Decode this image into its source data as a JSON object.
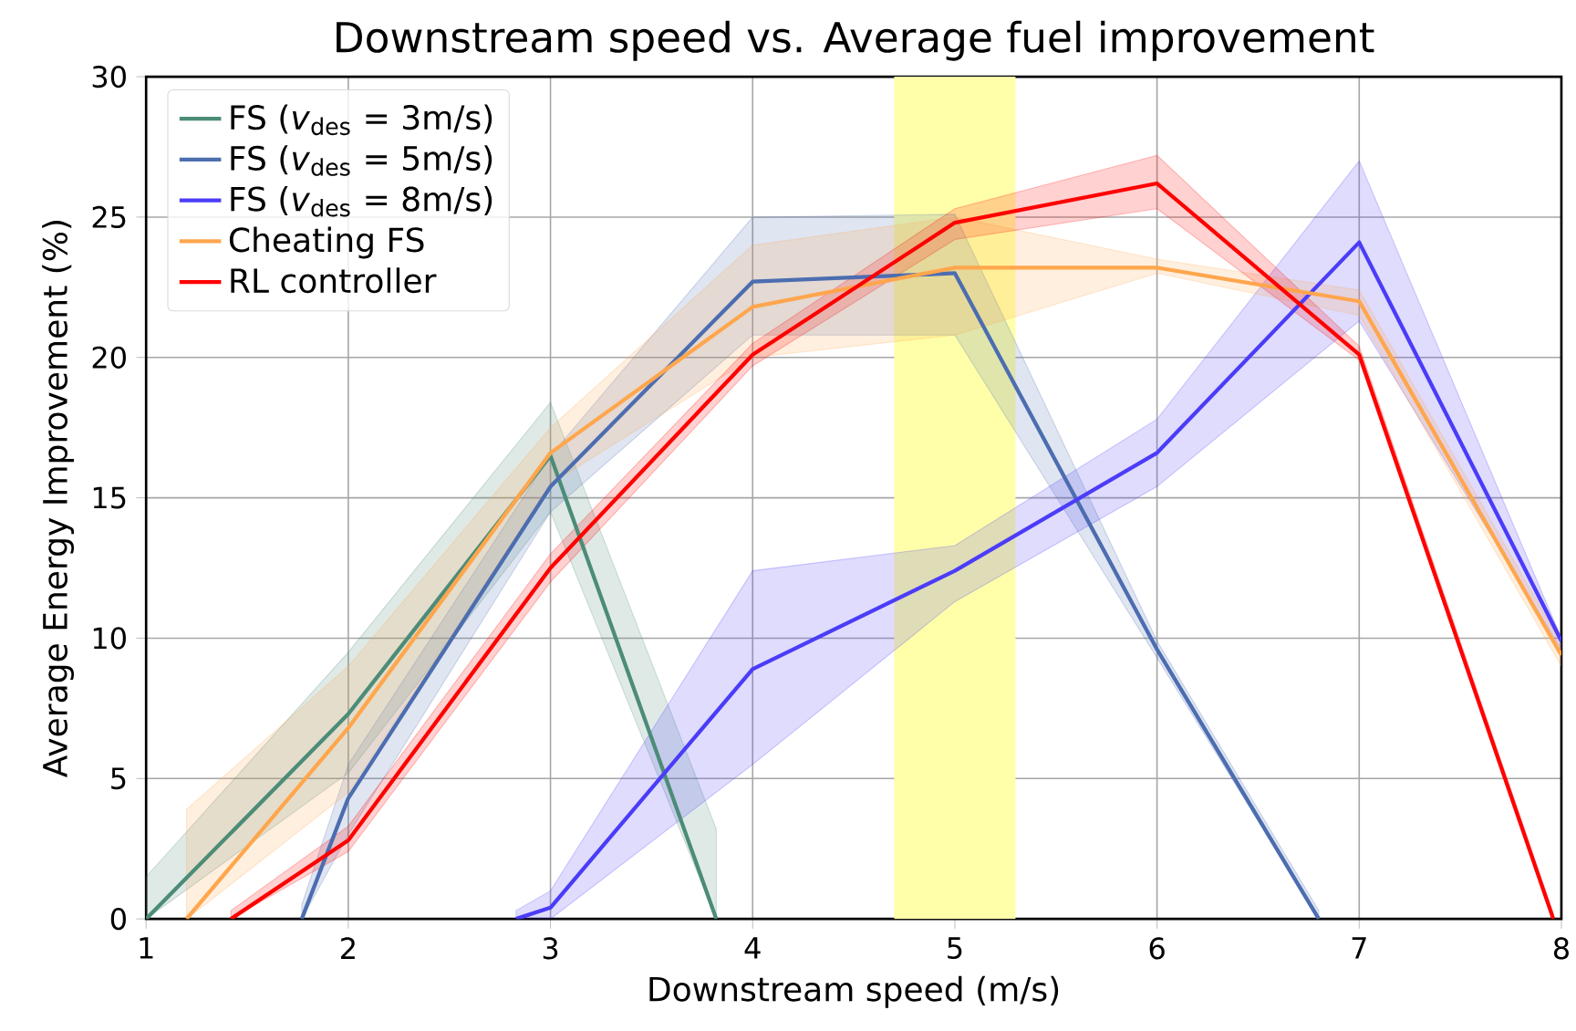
{
  "chart_data": {
    "type": "line",
    "title": "Downstream speed vs. Average fuel improvement",
    "xlabel": "Downstream speed (m/s)",
    "ylabel": "Average Energy Improvement (%)",
    "xlim": [
      1,
      8
    ],
    "ylim": [
      0,
      30
    ],
    "xticks": [
      1,
      2,
      3,
      4,
      5,
      6,
      7,
      8
    ],
    "yticks": [
      0,
      5,
      10,
      15,
      20,
      25,
      30
    ],
    "grid": true,
    "legend": "top left",
    "bands": [
      {
        "axis": "x",
        "from": 4.7,
        "to": 5.3,
        "color": "#ffffaa"
      }
    ],
    "series": [
      {
        "name": "FS (*v*$_{des}$ = 3m/s)",
        "color": "#4c8c78",
        "x": [
          1,
          2,
          3,
          3.82
        ],
        "values": [
          0,
          7.3,
          16.5,
          0
        ],
        "lower": [
          0,
          5.2,
          14.5,
          0
        ],
        "upper": [
          1.5,
          9.5,
          18.4,
          3.2
        ]
      },
      {
        "name": "FS (*v*$_{des}$ = 5m/s)",
        "color": "#4c6db0",
        "x": [
          1.77,
          2,
          3,
          4,
          5,
          6,
          6.8
        ],
        "values": [
          0,
          4.3,
          15.4,
          22.7,
          23.0,
          9.6,
          0
        ],
        "lower": [
          0,
          3.0,
          14.5,
          20.8,
          20.8,
          9.3,
          0
        ],
        "upper": [
          0.5,
          5.5,
          16.5,
          25.0,
          25.1,
          9.9,
          0.3
        ]
      },
      {
        "name": "FS (*v*$_{des}$ = 8m/s)",
        "color": "#4b3cf8",
        "x": [
          2.83,
          3,
          4,
          5,
          6,
          7,
          8
        ],
        "values": [
          0,
          0.4,
          8.9,
          12.4,
          16.6,
          24.1,
          9.9
        ],
        "lower": [
          0,
          0,
          5.5,
          11.3,
          15.4,
          21.3,
          9.6
        ],
        "upper": [
          0.3,
          1.0,
          12.4,
          13.3,
          17.8,
          27.0,
          10.0
        ]
      },
      {
        "name": "Cheating FS",
        "color": "#ffa64d",
        "x": [
          1.2,
          2,
          3,
          4,
          5,
          6,
          7,
          8
        ],
        "values": [
          0,
          6.8,
          16.6,
          21.8,
          23.2,
          23.2,
          22.0,
          9.4
        ],
        "lower": [
          0,
          4.5,
          15.5,
          20.0,
          20.8,
          23.0,
          21.5,
          9.0
        ],
        "upper": [
          3.9,
          9.0,
          17.5,
          24.0,
          25.0,
          23.5,
          22.4,
          9.8
        ]
      },
      {
        "name": "RL controller",
        "color": "#ff0000",
        "x": [
          1.42,
          2,
          3,
          4,
          5,
          6,
          7,
          7.96
        ],
        "values": [
          0,
          2.8,
          12.5,
          20.1,
          24.8,
          26.2,
          20.1,
          0
        ],
        "lower": [
          0,
          2.4,
          12.0,
          19.7,
          24.2,
          25.3,
          19.9,
          0
        ],
        "upper": [
          0.3,
          3.3,
          13.0,
          20.5,
          25.3,
          27.2,
          20.4,
          0.2
        ]
      }
    ]
  }
}
